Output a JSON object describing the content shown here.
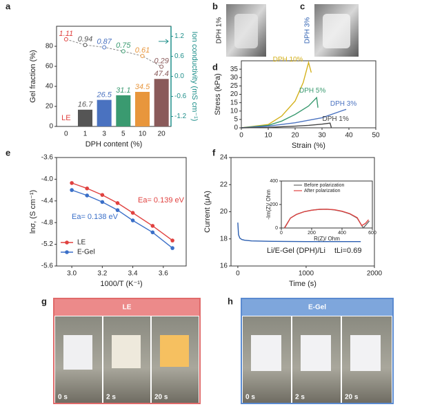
{
  "panel_labels": [
    "a",
    "b",
    "c",
    "d",
    "e",
    "f",
    "g",
    "h"
  ],
  "photos": {
    "b": {
      "label": "DPH 1%"
    },
    "c": {
      "label": "DPH 3%"
    },
    "g": {
      "header": "LE",
      "times": [
        "0 s",
        "2 s",
        "20 s"
      ]
    },
    "h": {
      "header": "E-Gel",
      "times": [
        "0 s",
        "2 s",
        "20 s"
      ]
    }
  },
  "chart_data": [
    {
      "type": "bar",
      "xlabel": "DPH content (%)",
      "ylabel": "Gel fraction (%)",
      "y2label": "Ion conductivity (mS cm⁻¹)",
      "categories": [
        "0",
        "1",
        "3",
        "5",
        "10",
        "20"
      ],
      "colors": [
        "#e0413f",
        "#555555",
        "#4a72c0",
        "#3a9a70",
        "#e8963c",
        "#8a5a5a"
      ],
      "annotation": "LE",
      "series": [
        {
          "values": [
            null,
            16.7,
            26.5,
            31.1,
            34.5,
            47.4
          ]
        },
        {
          "type": "line",
          "axis": "y2",
          "color": "#888888",
          "values": [
            1.11,
            0.94,
            0.87,
            0.75,
            0.61,
            0.29
          ]
        }
      ],
      "ylim": [
        0,
        100
      ],
      "yticks": [
        0,
        20,
        40,
        60,
        80
      ],
      "y2lim": [
        -1.5,
        1.5
      ],
      "y2ticks": [
        -1.2,
        -0.6,
        {
          "value": 0,
          "label": "0.0"
        },
        0.6,
        1.2
      ],
      "y2color": "#1f8f8a"
    },
    {
      "type": "line",
      "xlabel": "Strain (%)",
      "ylabel": "Stress (kPa)",
      "series": [
        {
          "name": "DPH 10%",
          "color": "#d4b11c",
          "x": [
            0,
            10,
            15,
            20,
            23,
            25,
            26
          ],
          "values": [
            0,
            2,
            7,
            16,
            27,
            39,
            33
          ]
        },
        {
          "name": "DPH 5%",
          "color": "#3a9a70",
          "x": [
            0,
            10,
            15,
            20,
            25,
            28,
            28.5
          ],
          "values": [
            0,
            1.5,
            4,
            8,
            13,
            18,
            12
          ]
        },
        {
          "name": "DPH 3%",
          "color": "#4a72c0",
          "x": [
            0,
            10,
            20,
            30,
            38,
            39
          ],
          "values": [
            0,
            1,
            3,
            6,
            10.5,
            11
          ]
        },
        {
          "name": "DPH 1%",
          "color": "#444444",
          "x": [
            0,
            10,
            20,
            25,
            30,
            33,
            33.5
          ],
          "values": [
            0,
            0.3,
            1,
            1.5,
            2.2,
            2.8,
            0
          ]
        }
      ],
      "xlim": [
        0,
        50
      ],
      "xticks": [
        0,
        10,
        20,
        30,
        40,
        50
      ],
      "ylim": [
        0,
        40
      ],
      "yticks": [
        0,
        5,
        10,
        15,
        20,
        25,
        30,
        35
      ]
    },
    {
      "type": "line",
      "xlabel": "1000/T (K⁻¹)",
      "ylabel": "lnσ, (S cm⁻¹)",
      "markers": true,
      "legend": "lower-left",
      "annotations": [
        "Ea= 0.139 eV",
        "Ea= 0.138 eV"
      ],
      "series": [
        {
          "name": "LE",
          "color": "#e0413f",
          "x": [
            3.0,
            3.1,
            3.2,
            3.3,
            3.4,
            3.53,
            3.66
          ],
          "values": [
            -4.07,
            -4.17,
            -4.29,
            -4.44,
            -4.62,
            -4.86,
            -5.13
          ]
        },
        {
          "name": "E-Gel",
          "color": "#3a6fc8",
          "x": [
            3.0,
            3.1,
            3.2,
            3.3,
            3.4,
            3.53,
            3.66
          ],
          "values": [
            -4.2,
            -4.3,
            -4.42,
            -4.57,
            -4.76,
            -4.98,
            -5.27
          ]
        }
      ],
      "xlim": [
        2.9,
        3.75
      ],
      "xticks": [
        {
          "value": 3,
          "label": "3.0"
        },
        3.2,
        3.4,
        3.6
      ],
      "ylim": [
        -5.6,
        -3.6
      ],
      "yticks": [
        -3.6,
        {
          "value": -4,
          "label": "-4.0"
        },
        -4.4,
        -4.8,
        -5.2,
        -5.6
      ]
    },
    {
      "type": "line",
      "xlabel": "Time (s)",
      "ylabel": "Current (μA)",
      "annotations": [
        "Li/E-Gel (DPH)/Li",
        "tLi=0.69"
      ],
      "series": [
        {
          "color": "#2a5db0",
          "x": [
            0,
            10,
            30,
            60,
            100,
            200,
            500,
            1000,
            1500,
            1800
          ],
          "values": [
            19.2,
            18.3,
            18.05,
            17.95,
            17.9,
            17.85,
            17.82,
            17.8,
            17.8,
            17.8
          ]
        }
      ],
      "xlim": [
        -100,
        2000
      ],
      "xticks": [
        0,
        1000,
        2000
      ],
      "ylim": [
        16,
        24
      ],
      "yticks": [
        16,
        18,
        20,
        22,
        24
      ]
    },
    {
      "type": "line",
      "xlabel": "R(Z)/ Ohm",
      "ylabel": "-Im(Z)/ Ohm",
      "legend": "upper-center",
      "series": [
        {
          "name": "Before polarization",
          "color": "#666666",
          "x": [
            20,
            60,
            100,
            150,
            200,
            250,
            300,
            350,
            400,
            450,
            500,
            540,
            560,
            580
          ],
          "values": [
            0,
            85,
            116,
            139,
            152,
            159,
            160,
            154,
            142,
            121,
            85,
            0,
            30,
            60
          ]
        },
        {
          "name": "After polarization",
          "color": "#e0413f",
          "x": [
            22,
            60,
            100,
            150,
            200,
            250,
            300,
            350,
            400,
            450,
            500,
            530,
            555,
            575
          ],
          "values": [
            0,
            84,
            115,
            138,
            151,
            158,
            160,
            155,
            143,
            123,
            88,
            20,
            40,
            70
          ]
        }
      ],
      "xlim": [
        0,
        600
      ],
      "xticks": [
        0,
        200,
        400,
        600
      ],
      "ylim": [
        0,
        400
      ],
      "yticks": [
        0,
        200,
        400
      ]
    }
  ]
}
